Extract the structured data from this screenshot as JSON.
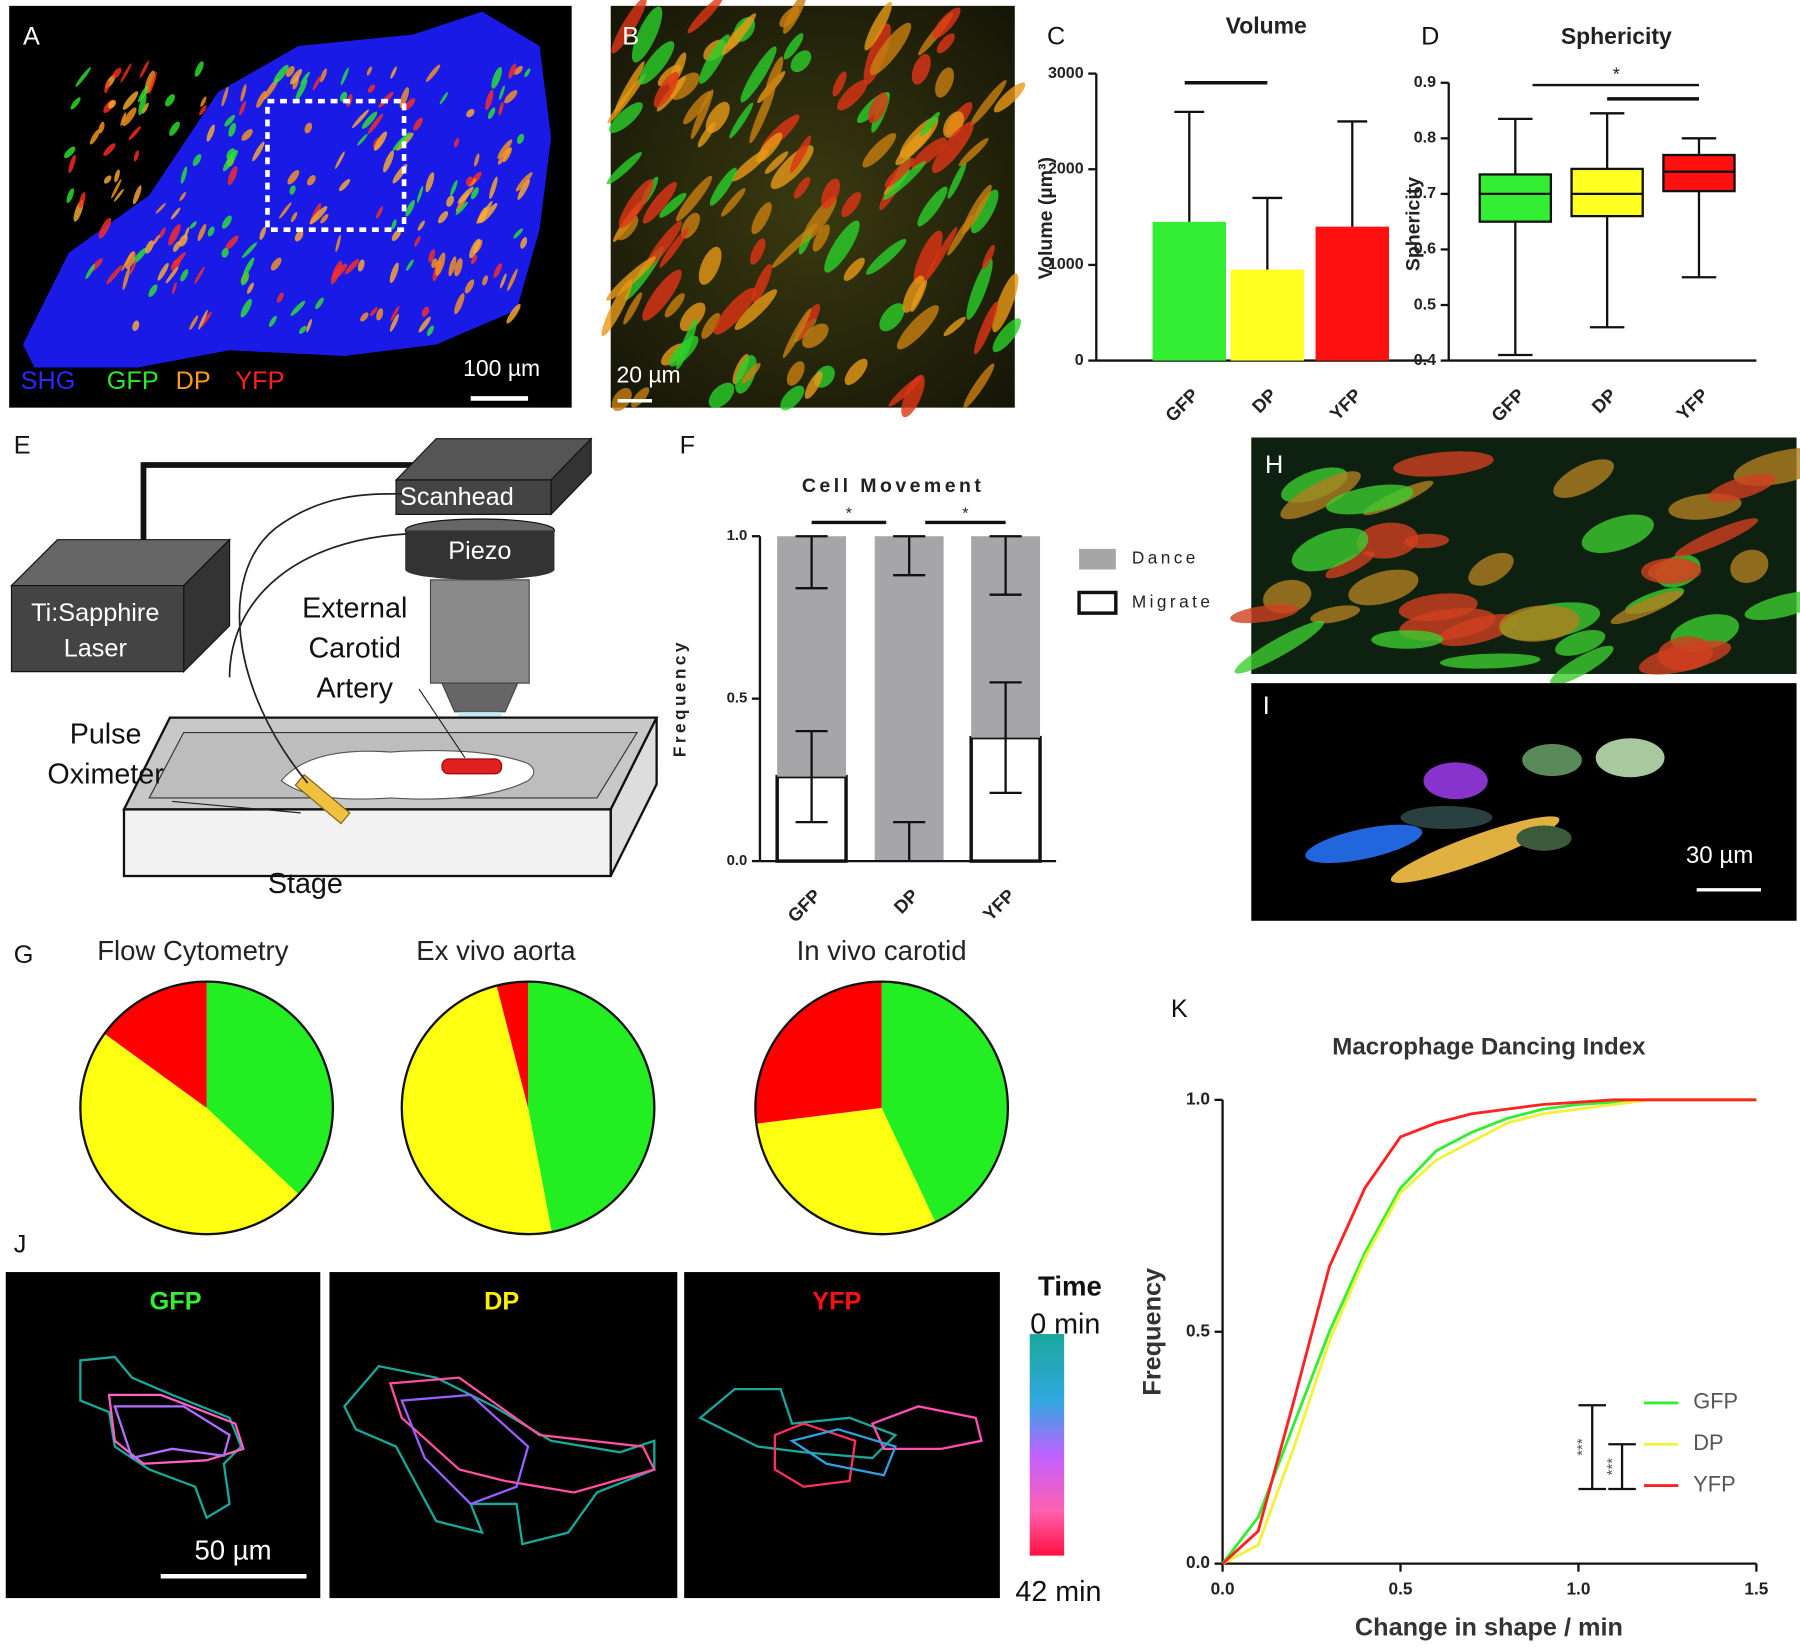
{
  "panels": {
    "A": {
      "label": "A",
      "channels": [
        "SHG",
        "GFP",
        "DP",
        "YFP"
      ],
      "scale_bar": "100 µm"
    },
    "B": {
      "label": "B",
      "scale_bar": "20 µm"
    },
    "C": {
      "label": "C"
    },
    "D": {
      "label": "D"
    },
    "E": {
      "label": "E",
      "scanhead": "Scanhead",
      "piezo": "Piezo",
      "laser": [
        "Ti:Sapphire",
        "Laser"
      ],
      "artery": [
        "External",
        "Carotid",
        "Artery"
      ],
      "oximeter": [
        "Pulse",
        "Oximeter"
      ],
      "stage": "Stage"
    },
    "F": {
      "label": "F"
    },
    "G": {
      "label": "G"
    },
    "H": {
      "label": "H"
    },
    "I": {
      "label": "I",
      "scale_bar": "30 µm"
    },
    "J": {
      "label": "J",
      "titles": [
        "GFP",
        "DP",
        "YFP"
      ],
      "scale_bar": "50 µm",
      "time_title": "Time",
      "time_start": "0 min",
      "time_end": "42 min"
    },
    "K": {
      "label": "K"
    }
  },
  "chart_data": [
    {
      "type": "bar",
      "title": "Volume",
      "ylabel": "Volume (µm³)",
      "categories": [
        "GFP",
        "DP",
        "YFP"
      ],
      "values": [
        1450,
        950,
        1400
      ],
      "errors": [
        1150,
        750,
        1100
      ],
      "colors": [
        "#33ee33",
        "#ffff22",
        "#ff1111"
      ],
      "ylim": [
        0,
        3000
      ],
      "yticks": [
        0,
        1000,
        2000,
        3000
      ]
    },
    {
      "type": "box",
      "title": "Sphericity",
      "ylabel": "Sphericity",
      "categories": [
        "GFP",
        "DP",
        "YFP"
      ],
      "min": [
        0.41,
        0.46,
        0.55
      ],
      "q1": [
        0.65,
        0.66,
        0.705
      ],
      "median": [
        0.7,
        0.7,
        0.74
      ],
      "q3": [
        0.735,
        0.745,
        0.77
      ],
      "max": [
        0.835,
        0.845,
        0.8
      ],
      "colors": [
        "#33ee33",
        "#ffff22",
        "#ff1111"
      ],
      "ylim": [
        0.4,
        0.9
      ],
      "yticks": [
        0.4,
        0.5,
        0.6,
        0.7,
        0.8,
        0.9
      ],
      "annotation": "*"
    },
    {
      "type": "stacked_bar",
      "title": "Cell Movement",
      "ylabel": "Frequency",
      "categories": [
        "GFP",
        "DP",
        "YFP"
      ],
      "series": [
        {
          "name": "Migrate",
          "color": "#ffffff",
          "values": [
            0.26,
            0,
            0.38
          ],
          "errors": [
            0.14,
            0.12,
            0.17
          ]
        },
        {
          "name": "Dance",
          "color": "#a6a6a9",
          "values": [
            0.74,
            1,
            0.62
          ],
          "errors": [
            0.16,
            0.12,
            0.18
          ]
        }
      ],
      "ylim": [
        0,
        1
      ],
      "yticks": [
        {
          "value": 0,
          "label": "0.0"
        },
        0.5,
        {
          "value": 1,
          "label": "1.0"
        }
      ],
      "annotations": [
        "*",
        "*"
      ]
    },
    {
      "type": "pie",
      "title": "Flow Cytometry",
      "values": [
        37,
        48,
        15
      ],
      "colors": [
        "#22ee22",
        "#ffff11",
        "#ff0000"
      ]
    },
    {
      "type": "pie",
      "title": "Ex vivo aorta",
      "values": [
        47,
        49,
        4
      ],
      "colors": [
        "#22ee22",
        "#ffff11",
        "#ff0000"
      ]
    },
    {
      "type": "pie",
      "title": "In vivo carotid",
      "values": [
        43,
        30,
        27
      ],
      "colors": [
        "#22ee22",
        "#ffff11",
        "#ff0000"
      ]
    },
    {
      "type": "line",
      "title": "Macrophage Dancing Index",
      "xlabel": "Change in shape / min",
      "ylabel": "Frequency",
      "x": [
        0,
        0.1,
        0.2,
        0.3,
        0.4,
        0.5,
        0.6,
        0.7,
        0.8,
        0.9,
        1,
        1.1,
        1.2,
        1.5
      ],
      "series": [
        {
          "name": "GFP",
          "color": "#33ee33",
          "values": [
            0,
            0.1,
            0.3,
            0.5,
            0.67,
            0.81,
            0.89,
            0.93,
            0.96,
            0.98,
            0.99,
            0.995,
            1,
            1
          ]
        },
        {
          "name": "DP",
          "color": "#f2f23a",
          "values": [
            0,
            0.04,
            0.25,
            0.48,
            0.66,
            0.8,
            0.87,
            0.91,
            0.95,
            0.97,
            0.98,
            0.99,
            1,
            1
          ]
        },
        {
          "name": "YFP",
          "color": "#ff2222",
          "values": [
            0,
            0.07,
            0.35,
            0.64,
            0.81,
            0.92,
            0.95,
            0.97,
            0.98,
            0.99,
            0.995,
            1,
            1,
            1
          ]
        }
      ],
      "xlim": [
        0,
        1.5
      ],
      "xticks": [
        {
          "value": 0,
          "label": "0.0"
        },
        0.5,
        {
          "value": 1,
          "label": "1.0"
        },
        1.5
      ],
      "ylim": [
        0,
        1
      ],
      "yticks": [
        {
          "value": 0,
          "label": "0.0"
        },
        0.5,
        {
          "value": 1,
          "label": "1.0"
        }
      ],
      "annotations": [
        "***",
        "***"
      ]
    }
  ]
}
